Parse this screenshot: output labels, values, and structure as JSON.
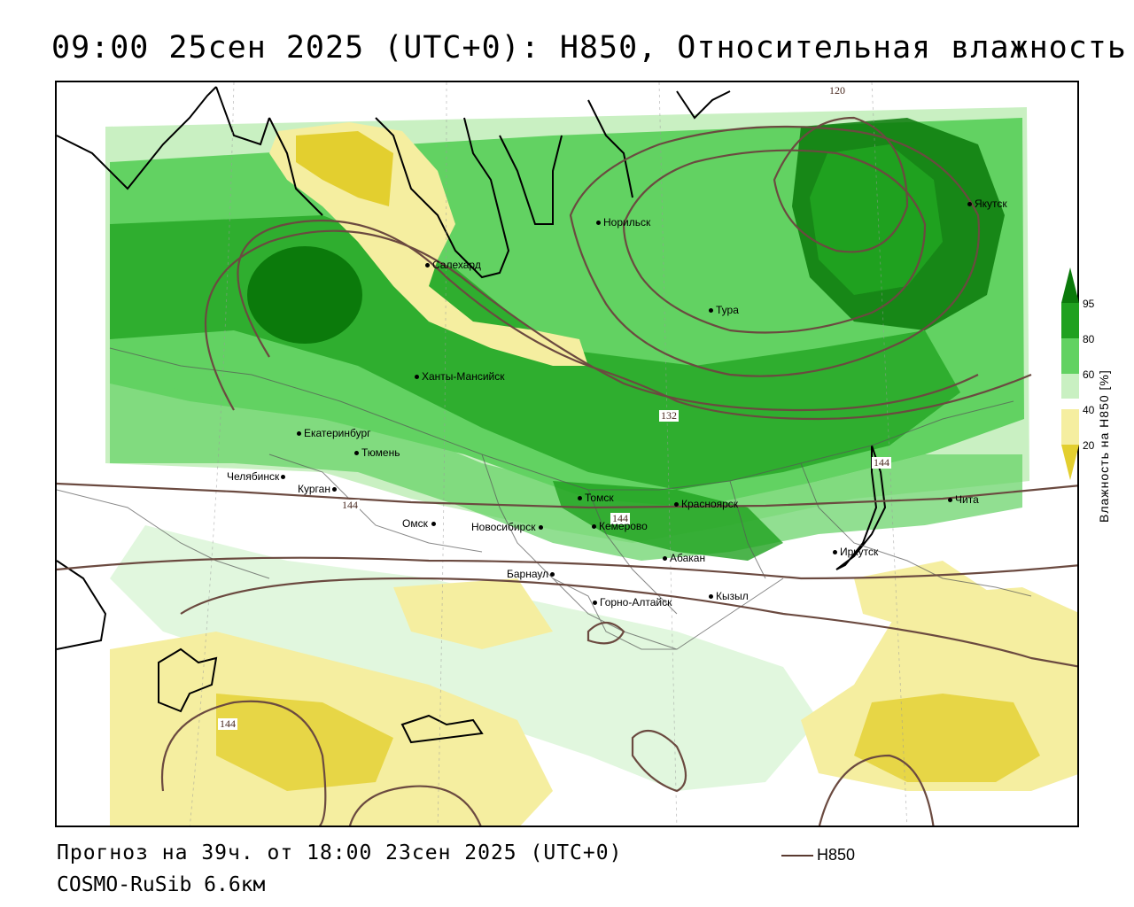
{
  "header": {
    "title": "09:00 25сен 2025 (UTC+0): H850, Относительная влажность"
  },
  "footer": {
    "forecast": "Прогноз на 39ч. от 18:00 23сен 2025 (UTC+0)",
    "model": "COSMO-RuSib 6.6км",
    "line_key": "H850"
  },
  "legend": {
    "title": "Влажность на H850 [%]",
    "ticks": [
      "95",
      "80",
      "60",
      "40",
      "20"
    ],
    "colors": {
      "very_dry": "#e3cf2f",
      "dry": "#f5eea0",
      "neutral": "#ffffff",
      "moist": "#c9f0c2",
      "wet": "#62d262",
      "very_wet": "#1fa11f",
      "saturated": "#0b7a0b"
    }
  },
  "contour_labels": [
    "120",
    "132",
    "144",
    "144",
    "144",
    "144"
  ],
  "contour_color": "#6b4a40",
  "cities": [
    {
      "name": "Норильск"
    },
    {
      "name": "Якутск"
    },
    {
      "name": "Салехард"
    },
    {
      "name": "Тура"
    },
    {
      "name": "Ханты-Мансийск"
    },
    {
      "name": "Екатеринбург"
    },
    {
      "name": "Тюмень"
    },
    {
      "name": "Челябинск"
    },
    {
      "name": "Курган"
    },
    {
      "name": "Омск"
    },
    {
      "name": "Новосибирск"
    },
    {
      "name": "Томск"
    },
    {
      "name": "Кемерово"
    },
    {
      "name": "Красноярск"
    },
    {
      "name": "Барнаул"
    },
    {
      "name": "Абакан"
    },
    {
      "name": "Горно-Алтайск"
    },
    {
      "name": "Кызыл"
    },
    {
      "name": "Иркутск"
    },
    {
      "name": "Чита"
    }
  ]
}
